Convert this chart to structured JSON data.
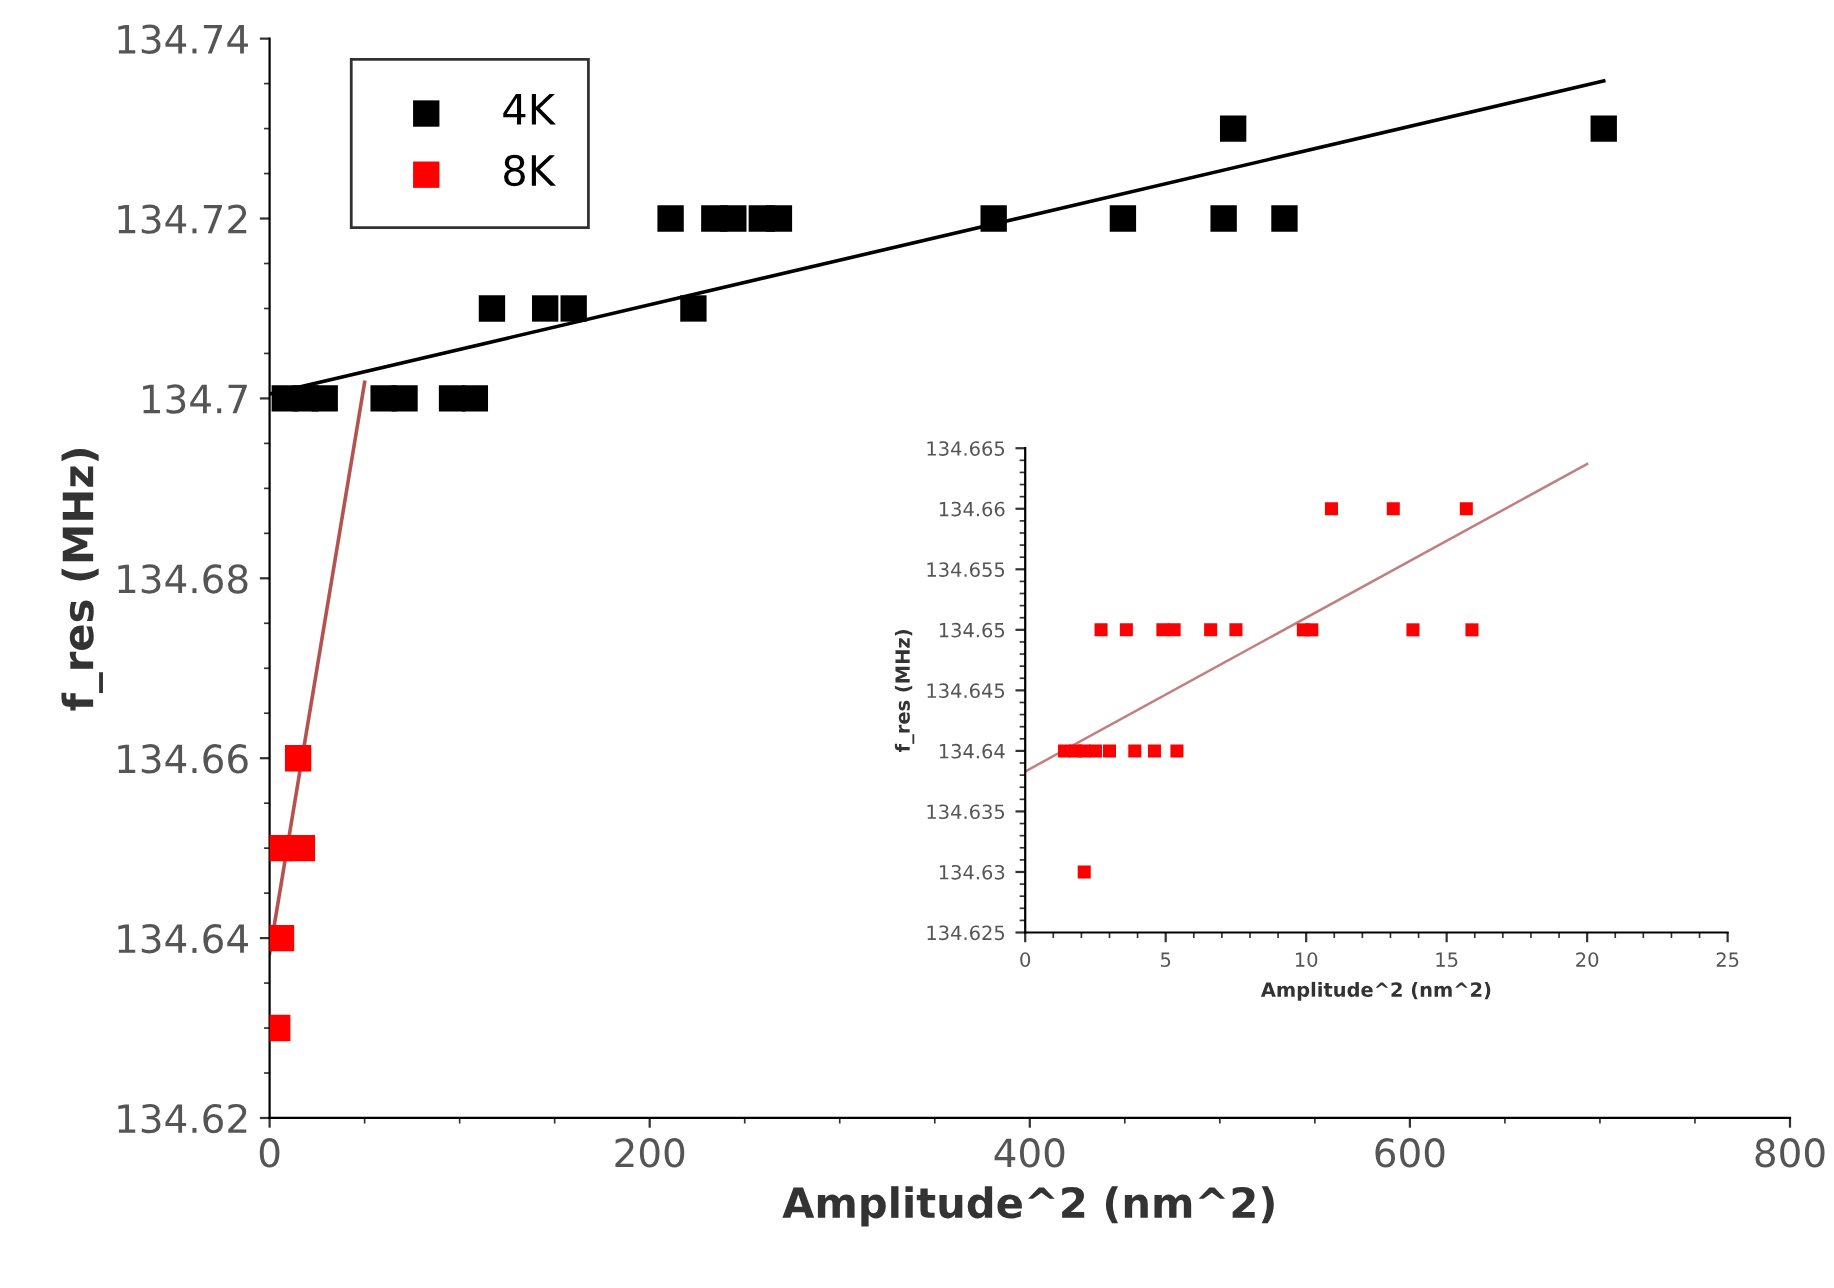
{
  "chart_data": [
    {
      "type": "scatter",
      "xlabel": "Amplitude^2 (nm^2)",
      "ylabel": "f_res (MHz)",
      "xlim": [
        0,
        800
      ],
      "xticks": [
        0,
        200,
        400,
        600,
        800
      ],
      "ylim": [
        134.62,
        134.74
      ],
      "yticks": [
        134.62,
        134.64,
        134.66,
        134.68,
        {
          "value": 134.7,
          "label": "134.7"
        },
        134.72,
        134.74
      ],
      "grid": false,
      "legend": "top left",
      "marker": "square",
      "series": [
        {
          "name": "4K",
          "color": "#000000",
          "x": [
            8,
            19,
            29,
            60,
            71,
            96,
            108,
            117,
            145,
            160,
            223,
            211,
            234,
            244,
            259,
            268,
            381,
            449,
            502,
            534,
            507,
            702
          ],
          "values": [
            134.7,
            134.7,
            134.7,
            134.7,
            134.7,
            134.7,
            134.7,
            134.71,
            134.71,
            134.71,
            134.71,
            134.72,
            134.72,
            134.72,
            134.72,
            134.72,
            134.72,
            134.72,
            134.72,
            134.72,
            134.73,
            134.73
          ]
        },
        {
          "name": "8K",
          "color": "#ff0000",
          "x": [
            15,
            5,
            17,
            6,
            4
          ],
          "values": [
            134.66,
            134.65,
            134.65,
            134.64,
            134.63
          ]
        },
        {
          "type": "line",
          "color": "#000000",
          "marker": "none",
          "x": [
            0,
            702
          ],
          "values": [
            134.7005,
            134.7353
          ]
        },
        {
          "type": "line",
          "color": "#b5524f",
          "marker": "none",
          "x": [
            0,
            50
          ],
          "values": [
            134.6383,
            134.7018
          ]
        }
      ]
    },
    {
      "type": "scatter",
      "xlabel": "Amplitude^2 (nm^2)",
      "ylabel": "f_res (MHz)",
      "xlim": [
        0,
        25
      ],
      "xticks": [
        0,
        5,
        10,
        15,
        20,
        25
      ],
      "ylim": [
        134.625,
        134.665
      ],
      "yticks": [
        134.625,
        134.63,
        134.635,
        134.64,
        134.645,
        134.65,
        134.655,
        134.66,
        134.665
      ],
      "grid": false,
      "marker": "square",
      "series": [
        {
          "color": "#ff0000",
          "x": [
            10.9,
            13.1,
            15.7,
            2.7,
            3.6,
            4.9,
            5.3,
            6.6,
            7.5,
            9.9,
            10.2,
            13.8,
            15.9,
            1.4,
            1.8,
            2.1,
            2.5,
            3.0,
            3.9,
            4.6,
            5.4,
            2.1
          ],
          "values": [
            134.66,
            134.66,
            134.66,
            134.65,
            134.65,
            134.65,
            134.65,
            134.65,
            134.65,
            134.65,
            134.65,
            134.65,
            134.65,
            134.64,
            134.64,
            134.64,
            134.64,
            134.64,
            134.64,
            134.64,
            134.64,
            134.63
          ]
        },
        {
          "type": "line",
          "color": "#c08080",
          "marker": "none",
          "x": [
            0,
            20
          ],
          "values": [
            134.6383,
            134.6637
          ]
        }
      ]
    }
  ]
}
